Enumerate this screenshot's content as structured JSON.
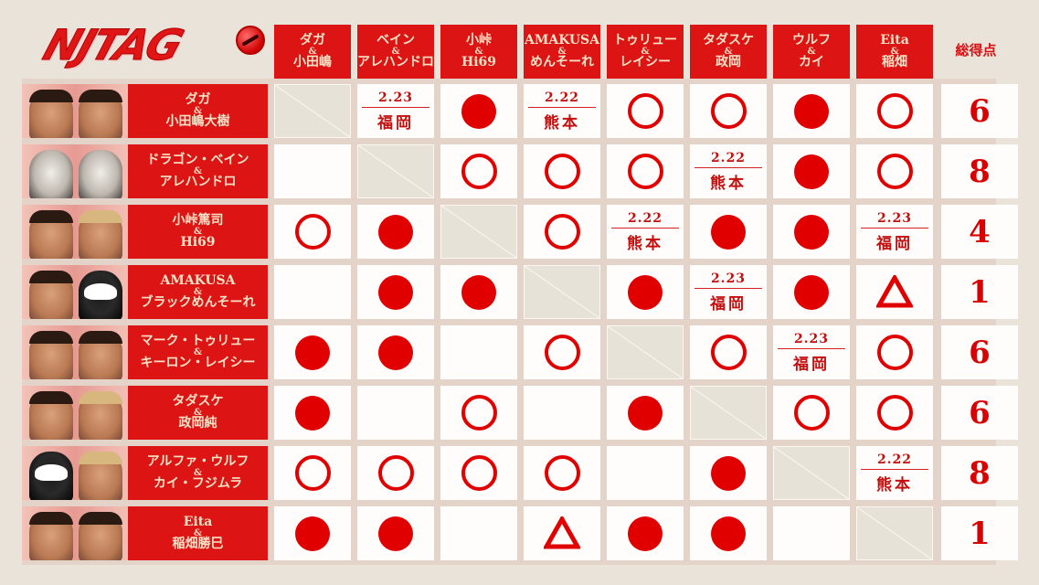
{
  "header": {
    "logo_text": "NJTAG",
    "total_label": "総得点"
  },
  "columns": [
    {
      "line1": "ダガ",
      "amp": "&",
      "line2": "小田嶋"
    },
    {
      "line1": "ベイン",
      "amp": "&",
      "line2": "アレハンドロ"
    },
    {
      "line1": "小峠",
      "amp": "&",
      "line2": "Hi69"
    },
    {
      "line1": "AMAKUSA",
      "amp": "&",
      "line2": "めんそーれ"
    },
    {
      "line1": "トゥリュー",
      "amp": "&",
      "line2": "レイシー"
    },
    {
      "line1": "タダスケ",
      "amp": "&",
      "line2": "政岡"
    },
    {
      "line1": "ウルフ",
      "amp": "&",
      "line2": "カイ"
    },
    {
      "line1": "Eita",
      "amp": "&",
      "line2": "稲畑"
    }
  ],
  "legend": {
    "win": "●",
    "loss": "○",
    "draw": "△"
  },
  "rows": [
    {
      "line1": "ダガ",
      "amp": "&",
      "line2": "小田嶋大樹",
      "total": "6",
      "cells": [
        {
          "type": "self"
        },
        {
          "type": "sched",
          "date": "2.23",
          "venue": "福岡"
        },
        {
          "type": "win"
        },
        {
          "type": "sched",
          "date": "2.22",
          "venue": "熊本"
        },
        {
          "type": "loss"
        },
        {
          "type": "loss"
        },
        {
          "type": "win"
        },
        {
          "type": "loss"
        }
      ]
    },
    {
      "line1": "ドラゴン・ベイン",
      "amp": "&",
      "line2": "アレハンドロ",
      "total": "8",
      "cells": [
        {
          "type": "empty"
        },
        {
          "type": "self"
        },
        {
          "type": "loss"
        },
        {
          "type": "loss"
        },
        {
          "type": "loss"
        },
        {
          "type": "sched",
          "date": "2.22",
          "venue": "熊本"
        },
        {
          "type": "win"
        },
        {
          "type": "loss"
        }
      ]
    },
    {
      "line1": "小峠篤司",
      "amp": "&",
      "line2": "Hi69",
      "total": "4",
      "cells": [
        {
          "type": "loss"
        },
        {
          "type": "win"
        },
        {
          "type": "self"
        },
        {
          "type": "loss"
        },
        {
          "type": "sched",
          "date": "2.22",
          "venue": "熊本"
        },
        {
          "type": "win"
        },
        {
          "type": "win"
        },
        {
          "type": "sched",
          "date": "2.23",
          "venue": "福岡"
        }
      ]
    },
    {
      "line1": "AMAKUSA",
      "amp": "&",
      "line2": "ブラックめんそーれ",
      "total": "1",
      "cells": [
        {
          "type": "empty"
        },
        {
          "type": "win"
        },
        {
          "type": "win"
        },
        {
          "type": "self"
        },
        {
          "type": "win"
        },
        {
          "type": "sched",
          "date": "2.23",
          "venue": "福岡"
        },
        {
          "type": "win"
        },
        {
          "type": "draw"
        }
      ]
    },
    {
      "line1": "マーク・トゥリュー",
      "amp": "&",
      "line2": "キーロン・レイシー",
      "total": "6",
      "cells": [
        {
          "type": "win"
        },
        {
          "type": "win"
        },
        {
          "type": "empty"
        },
        {
          "type": "loss"
        },
        {
          "type": "self"
        },
        {
          "type": "loss"
        },
        {
          "type": "sched",
          "date": "2.23",
          "venue": "福岡"
        },
        {
          "type": "loss"
        }
      ]
    },
    {
      "line1": "タダスケ",
      "amp": "&",
      "line2": "政岡純",
      "total": "6",
      "cells": [
        {
          "type": "win"
        },
        {
          "type": "empty"
        },
        {
          "type": "loss"
        },
        {
          "type": "empty"
        },
        {
          "type": "win"
        },
        {
          "type": "self"
        },
        {
          "type": "loss"
        },
        {
          "type": "loss"
        }
      ]
    },
    {
      "line1": "アルファ・ウルフ",
      "amp": "&",
      "line2": "カイ・フジムラ",
      "total": "8",
      "cells": [
        {
          "type": "loss"
        },
        {
          "type": "loss"
        },
        {
          "type": "loss"
        },
        {
          "type": "loss"
        },
        {
          "type": "empty"
        },
        {
          "type": "win"
        },
        {
          "type": "self"
        },
        {
          "type": "sched",
          "date": "2.22",
          "venue": "熊本"
        }
      ]
    },
    {
      "line1": "Eita",
      "amp": "&",
      "line2": "稲畑勝巳",
      "total": "1",
      "cells": [
        {
          "type": "win"
        },
        {
          "type": "win"
        },
        {
          "type": "empty"
        },
        {
          "type": "draw"
        },
        {
          "type": "win"
        },
        {
          "type": "win"
        },
        {
          "type": "empty"
        },
        {
          "type": "self"
        }
      ]
    }
  ],
  "colors": {
    "accent_red": "#dc1414",
    "mark_red": "#e00000",
    "header_text": "#f6e2c7",
    "background": "#e9e3da",
    "cell_bg": "#fefdfb",
    "self_cell_bg": "#e7e2d8"
  }
}
